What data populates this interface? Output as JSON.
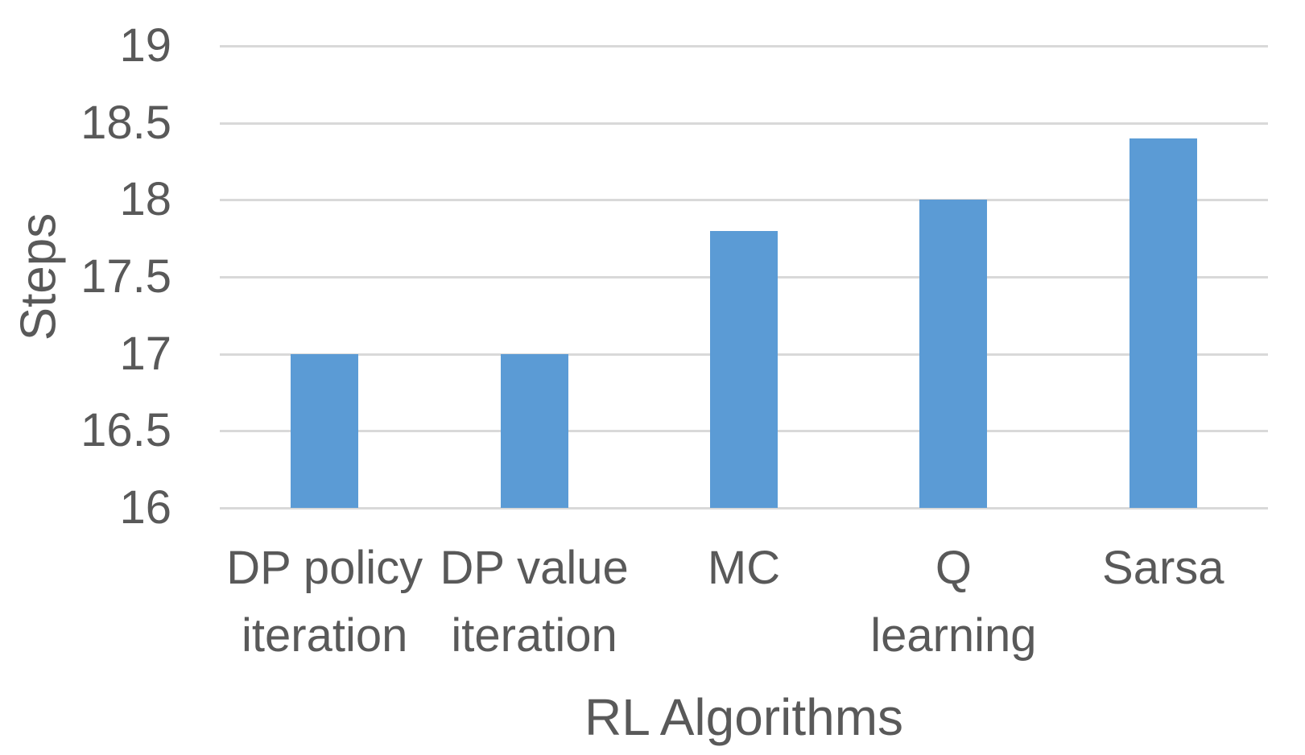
{
  "chart_data": {
    "type": "bar",
    "title": "",
    "xlabel": "RL Algorithms",
    "ylabel": "Steps",
    "categories": [
      "DP policy iteration",
      "DP value iteration",
      "MC",
      "Q learning",
      "Sarsa"
    ],
    "categories_display": [
      "DP policy\niteration",
      "DP value\niteration",
      "MC",
      "Q\nlearning",
      "Sarsa"
    ],
    "values": [
      17,
      17,
      17.8,
      18,
      18.4
    ],
    "ylim": [
      16,
      19
    ],
    "yticks": [
      16,
      16.5,
      17,
      17.5,
      18,
      18.5,
      19
    ],
    "ytick_labels": [
      "16",
      "16.5",
      "17",
      "17.5",
      "18",
      "18.5",
      "19"
    ],
    "grid": "horizontal-only",
    "legend": "none",
    "colors": {
      "bar": "#5B9BD5",
      "gridline": "#D9D9D9",
      "text": "#595959",
      "background": "#FFFFFF"
    }
  }
}
